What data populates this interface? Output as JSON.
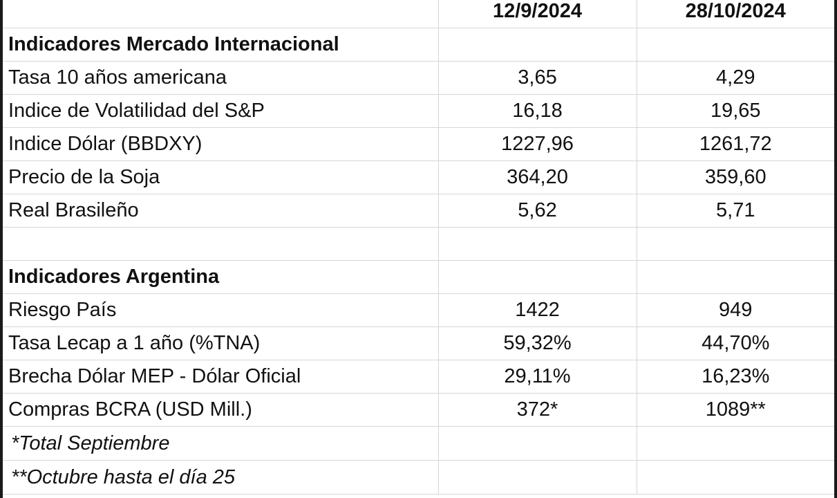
{
  "header": {
    "date_1": "12/9/2024",
    "date_2": "28/10/2024"
  },
  "sections": {
    "international": {
      "title": "Indicadores Mercado Internacional",
      "rows": [
        {
          "label": "Tasa 10 años americana",
          "v1": "3,65",
          "v2": "4,29"
        },
        {
          "label": "Indice de Volatilidad del S&P",
          "v1": "16,18",
          "v2": "19,65"
        },
        {
          "label": "Indice Dólar (BBDXY)",
          "v1": "1227,96",
          "v2": "1261,72"
        },
        {
          "label": "Precio de la Soja",
          "v1": "364,20",
          "v2": "359,60"
        },
        {
          "label": "Real Brasileño",
          "v1": "5,62",
          "v2": "5,71"
        }
      ]
    },
    "argentina": {
      "title": "Indicadores Argentina",
      "rows": [
        {
          "label": "Riesgo País",
          "v1": "1422",
          "v2": "949"
        },
        {
          "label": "Tasa Lecap a 1 año (%TNA)",
          "v1": "59,32%",
          "v2": "44,70%"
        },
        {
          "label": "Brecha Dólar MEP - Dólar Oficial",
          "v1": "29,11%",
          "v2": "16,23%"
        },
        {
          "label": "Compras BCRA (USD Mill.)",
          "v1": "372*",
          "v2": "1089**"
        }
      ]
    }
  },
  "footnotes": {
    "note_1": "*Total Septiembre",
    "note_2": "**Octubre hasta el día 25"
  }
}
